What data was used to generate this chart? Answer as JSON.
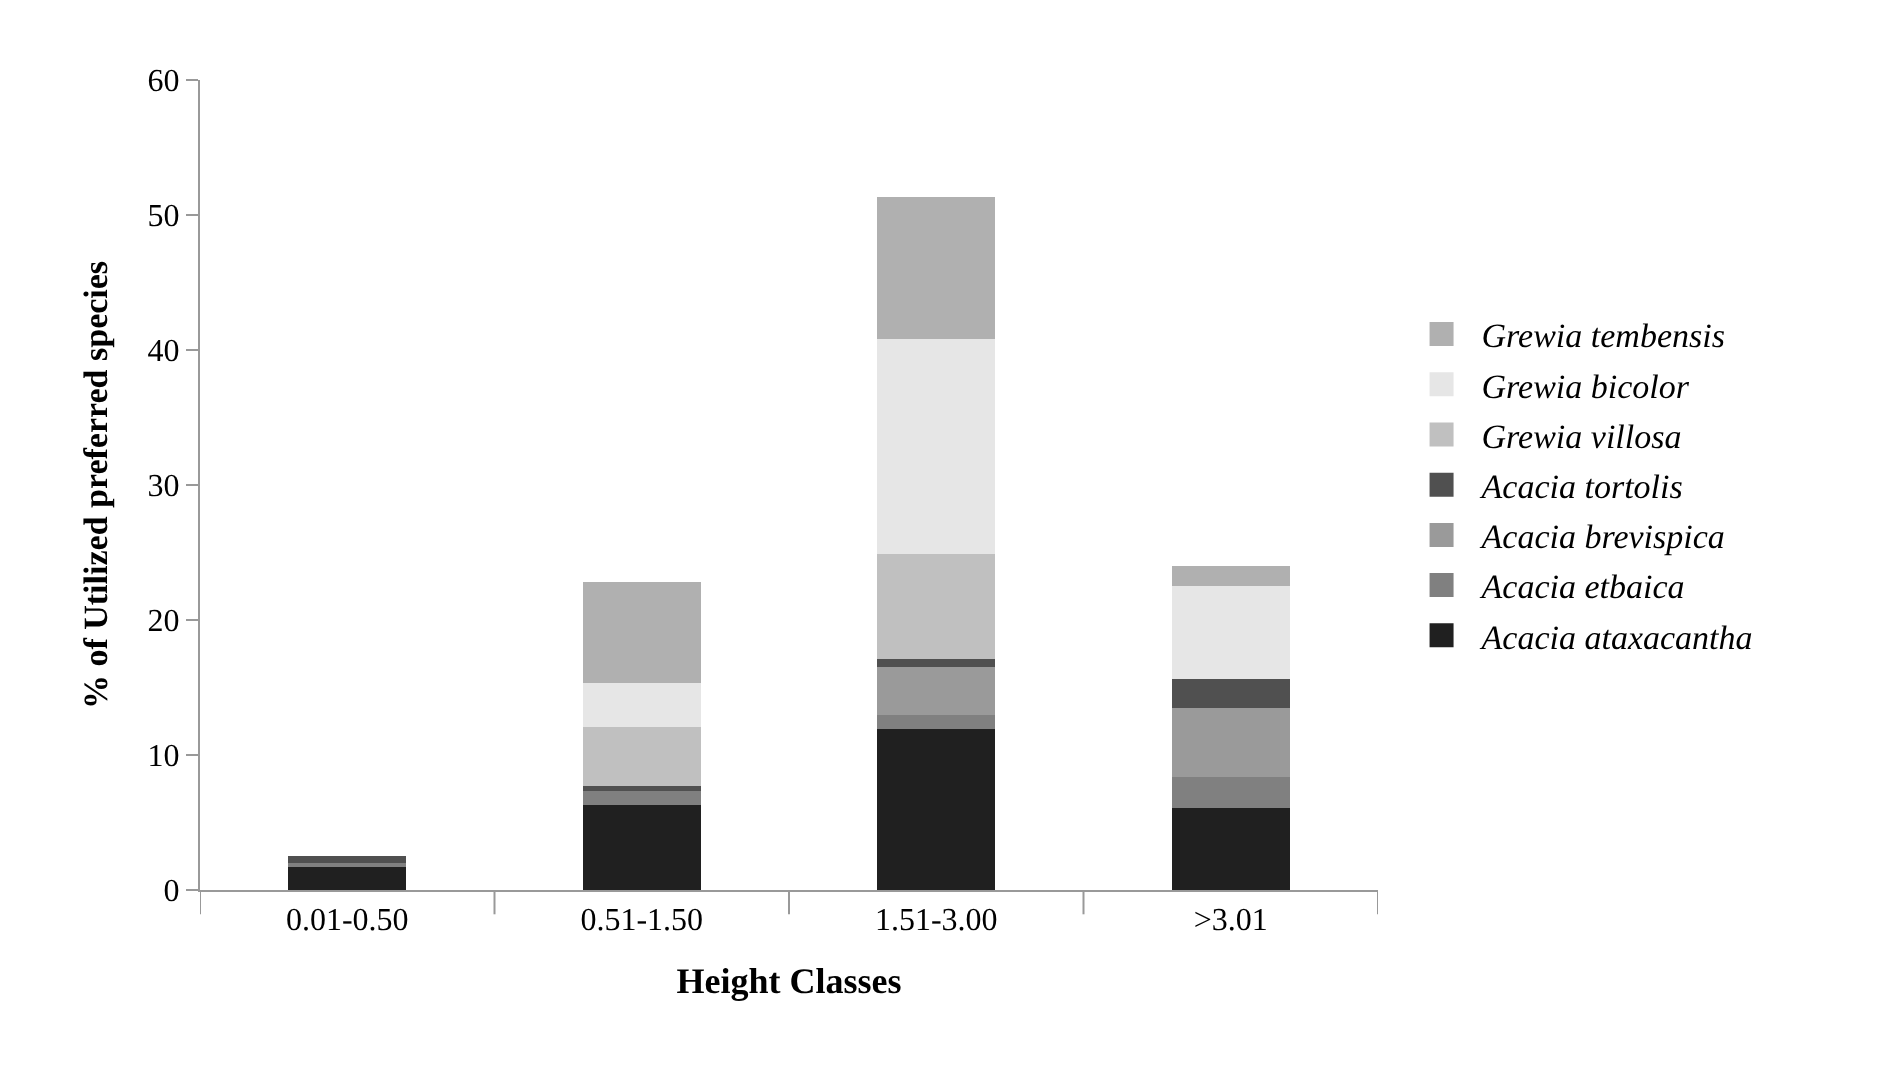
{
  "chart_data": {
    "type": "bar",
    "stacked": true,
    "xlabel": "Height Classes",
    "ylabel": "% of Utilized preferred species",
    "categories": [
      "0.01-0.50",
      "0.51-1.50",
      "1.51-3.00",
      ">3.01"
    ],
    "series": [
      {
        "name": "Acacia ataxacantha",
        "color": "#202020",
        "values": [
          1.7,
          6.3,
          11.9,
          6.1
        ]
      },
      {
        "name": "Acacia etbaica",
        "color": "#808080",
        "values": [
          0.3,
          1.0,
          1.1,
          2.3
        ]
      },
      {
        "name": "Acacia brevispica",
        "color": "#9a9a9a",
        "values": [
          0,
          0,
          3.5,
          5.1
        ]
      },
      {
        "name": "Acacia tortolis",
        "color": "#505050",
        "values": [
          0.5,
          0.4,
          0.6,
          2.1
        ]
      },
      {
        "name": "Grewia villosa",
        "color": "#c0c0c0",
        "values": [
          0,
          4.4,
          7.8,
          0
        ]
      },
      {
        "name": "Grewia bicolor",
        "color": "#e6e6e6",
        "values": [
          0,
          3.2,
          15.9,
          6.9
        ]
      },
      {
        "name": "Grewia tembensis",
        "color": "#b0b0b0",
        "values": [
          0,
          7.5,
          10.5,
          1.5
        ]
      }
    ],
    "ylim": [
      0,
      60
    ],
    "yticks": [
      0,
      10,
      20,
      30,
      40,
      50,
      60
    ],
    "legend": "right"
  }
}
